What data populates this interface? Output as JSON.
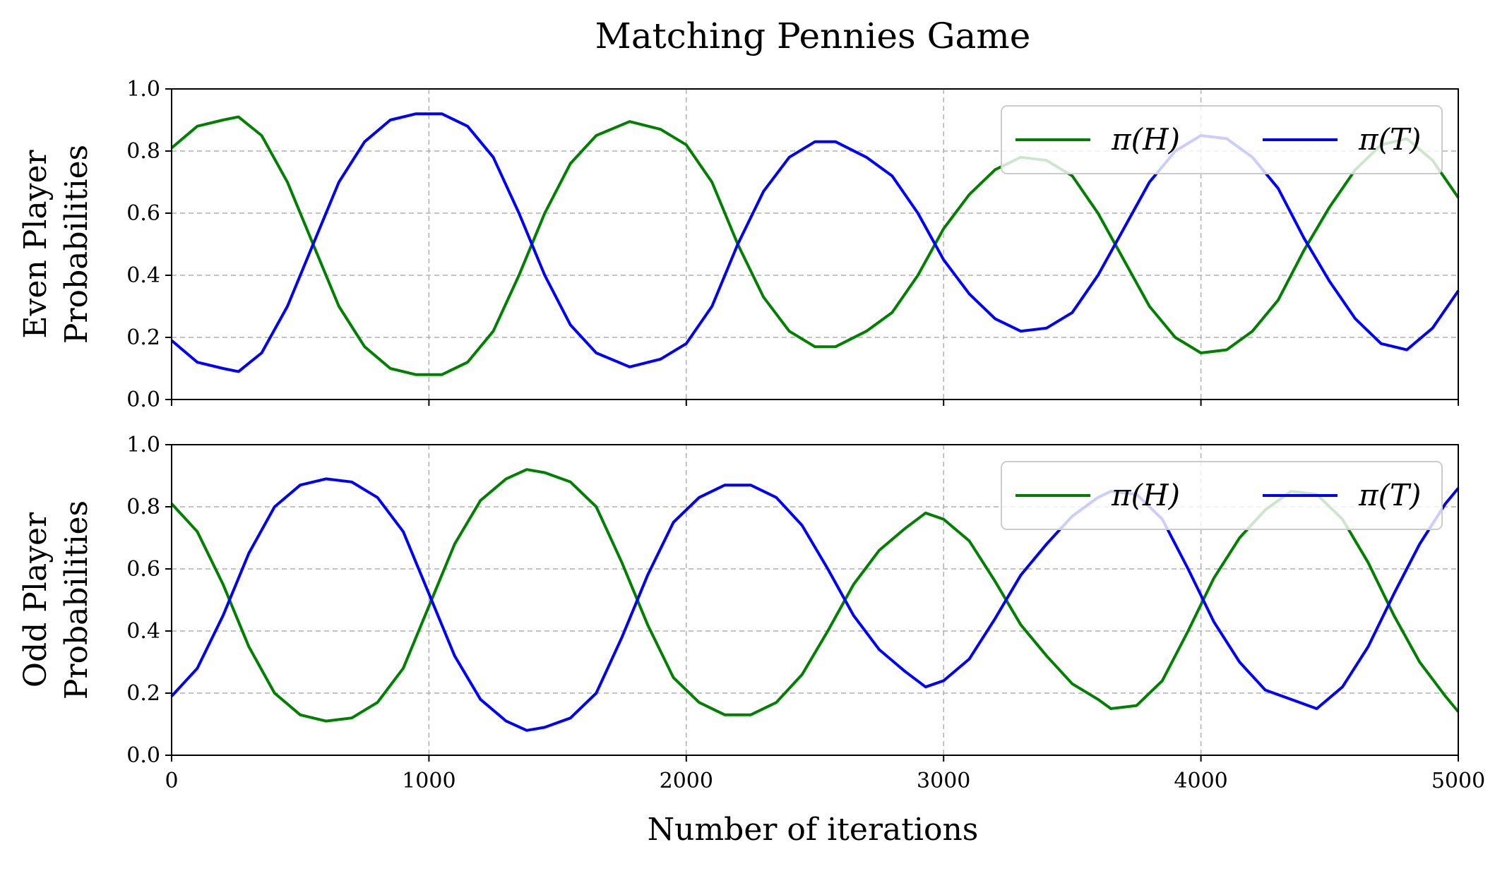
{
  "chart_data": {
    "type": "line",
    "title": "Matching Pennies Game",
    "xlabel": "Number of iterations",
    "xlim": [
      0,
      5000
    ],
    "xticks": [
      "0",
      "1000",
      "2000",
      "3000",
      "4000",
      "5000"
    ],
    "ytick_labels": [
      "0.0",
      "0.2",
      "0.4",
      "0.6",
      "0.8",
      "1.0"
    ],
    "grid": true,
    "legend_placement": "top-right",
    "panels": [
      {
        "ylabel_lines": [
          "Even Player",
          "Probabilities"
        ],
        "ylim": [
          0,
          1
        ],
        "series": [
          {
            "name": "π(H)",
            "color": "#008000",
            "x": [
              0,
              100,
              200,
              260,
              350,
              450,
              550,
              650,
              750,
              850,
              950,
              1050,
              1150,
              1250,
              1350,
              1450,
              1550,
              1650,
              1780,
              1900,
              2000,
              2100,
              2200,
              2300,
              2400,
              2500,
              2580,
              2700,
              2800,
              2900,
              3000,
              3100,
              3200,
              3300,
              3400,
              3500,
              3600,
              3700,
              3800,
              3900,
              4000,
              4100,
              4200,
              4300,
              4400,
              4500,
              4600,
              4700,
              4800,
              4900,
              5000
            ],
            "values": [
              0.81,
              0.88,
              0.9,
              0.91,
              0.85,
              0.7,
              0.5,
              0.3,
              0.17,
              0.1,
              0.08,
              0.08,
              0.12,
              0.22,
              0.4,
              0.6,
              0.76,
              0.85,
              0.895,
              0.87,
              0.82,
              0.7,
              0.5,
              0.33,
              0.22,
              0.17,
              0.17,
              0.22,
              0.28,
              0.4,
              0.55,
              0.66,
              0.74,
              0.78,
              0.77,
              0.72,
              0.6,
              0.45,
              0.3,
              0.2,
              0.15,
              0.16,
              0.22,
              0.32,
              0.48,
              0.62,
              0.74,
              0.82,
              0.84,
              0.77,
              0.65
            ]
          },
          {
            "name": "π(T)",
            "color": "#0000ff",
            "x": [
              0,
              100,
              200,
              260,
              350,
              450,
              550,
              650,
              750,
              850,
              950,
              1050,
              1150,
              1250,
              1350,
              1450,
              1550,
              1650,
              1780,
              1900,
              2000,
              2100,
              2200,
              2300,
              2400,
              2500,
              2580,
              2700,
              2800,
              2900,
              3000,
              3100,
              3200,
              3300,
              3400,
              3500,
              3600,
              3700,
              3800,
              3900,
              4000,
              4100,
              4200,
              4300,
              4400,
              4500,
              4600,
              4700,
              4800,
              4900,
              5000
            ],
            "values": [
              0.19,
              0.12,
              0.1,
              0.09,
              0.15,
              0.3,
              0.5,
              0.7,
              0.83,
              0.9,
              0.92,
              0.92,
              0.88,
              0.78,
              0.6,
              0.4,
              0.24,
              0.15,
              0.105,
              0.13,
              0.18,
              0.3,
              0.5,
              0.67,
              0.78,
              0.83,
              0.83,
              0.78,
              0.72,
              0.6,
              0.45,
              0.34,
              0.26,
              0.22,
              0.23,
              0.28,
              0.4,
              0.55,
              0.7,
              0.8,
              0.85,
              0.84,
              0.78,
              0.68,
              0.52,
              0.38,
              0.26,
              0.18,
              0.16,
              0.23,
              0.35
            ]
          }
        ]
      },
      {
        "ylabel_lines": [
          "Odd Player",
          "Probabilities"
        ],
        "ylim": [
          0,
          1
        ],
        "series": [
          {
            "name": "π(H)",
            "color": "#008000",
            "x": [
              0,
              100,
              200,
              300,
              400,
              500,
              600,
              700,
              800,
              900,
              1000,
              1100,
              1200,
              1300,
              1380,
              1450,
              1550,
              1650,
              1750,
              1850,
              1950,
              2050,
              2150,
              2250,
              2350,
              2450,
              2550,
              2650,
              2750,
              2850,
              2930,
              3000,
              3100,
              3200,
              3300,
              3400,
              3500,
              3600,
              3650,
              3750,
              3850,
              3950,
              4050,
              4150,
              4250,
              4350,
              4450,
              4550,
              4650,
              4750,
              4850,
              4950,
              5000
            ],
            "values": [
              0.81,
              0.72,
              0.55,
              0.35,
              0.2,
              0.13,
              0.11,
              0.12,
              0.17,
              0.28,
              0.48,
              0.68,
              0.82,
              0.89,
              0.92,
              0.91,
              0.88,
              0.8,
              0.62,
              0.42,
              0.25,
              0.17,
              0.13,
              0.13,
              0.17,
              0.26,
              0.4,
              0.55,
              0.66,
              0.73,
              0.78,
              0.76,
              0.69,
              0.56,
              0.42,
              0.32,
              0.23,
              0.18,
              0.15,
              0.16,
              0.24,
              0.4,
              0.57,
              0.7,
              0.79,
              0.85,
              0.84,
              0.76,
              0.62,
              0.45,
              0.3,
              0.19,
              0.14
            ]
          },
          {
            "name": "π(T)",
            "color": "#0000ff",
            "x": [
              0,
              100,
              200,
              300,
              400,
              500,
              600,
              700,
              800,
              900,
              1000,
              1100,
              1200,
              1300,
              1380,
              1450,
              1550,
              1650,
              1750,
              1850,
              1950,
              2050,
              2150,
              2250,
              2350,
              2450,
              2550,
              2650,
              2750,
              2850,
              2930,
              3000,
              3100,
              3200,
              3300,
              3400,
              3500,
              3600,
              3650,
              3750,
              3850,
              3950,
              4050,
              4150,
              4250,
              4350,
              4450,
              4550,
              4650,
              4750,
              4850,
              4950,
              5000
            ],
            "values": [
              0.19,
              0.28,
              0.45,
              0.65,
              0.8,
              0.87,
              0.89,
              0.88,
              0.83,
              0.72,
              0.52,
              0.32,
              0.18,
              0.11,
              0.08,
              0.09,
              0.12,
              0.2,
              0.38,
              0.58,
              0.75,
              0.83,
              0.87,
              0.87,
              0.83,
              0.74,
              0.6,
              0.45,
              0.34,
              0.27,
              0.22,
              0.24,
              0.31,
              0.44,
              0.58,
              0.68,
              0.77,
              0.83,
              0.85,
              0.84,
              0.76,
              0.6,
              0.43,
              0.3,
              0.21,
              0.18,
              0.15,
              0.22,
              0.35,
              0.52,
              0.68,
              0.81,
              0.86
            ]
          }
        ]
      }
    ]
  }
}
